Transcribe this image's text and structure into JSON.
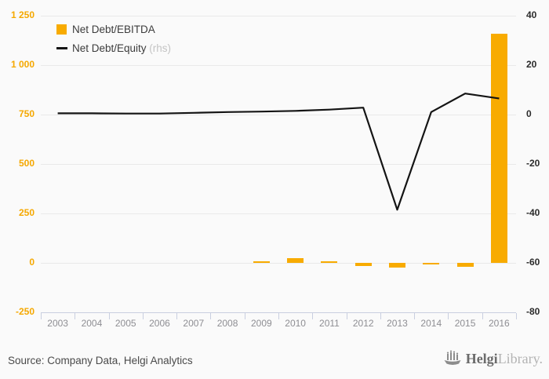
{
  "window": {
    "background": "#fafafa"
  },
  "colors": {
    "bar": "#f8ab00",
    "line": "#141414",
    "left_axis_label": "#f5a800",
    "right_axis_label": "#2b2b2b",
    "year_label": "#8e8e93",
    "gridline": "#e9e9e9",
    "axis_tick": "#c9cfe0",
    "rhs_suffix": "#c4c4c4"
  },
  "legend": {
    "items": [
      {
        "label": "Net Debt/EBITDA",
        "marker": "square",
        "color": "#f8ab00"
      },
      {
        "label": "Net Debt/Equity",
        "suffix": " (rhs)",
        "marker": "line",
        "color": "#141414"
      }
    ]
  },
  "footer": {
    "source": "Source: Company Data, Helgi Analytics",
    "logo": {
      "bold": "Helgi",
      "light": "Library."
    }
  },
  "chart_data": {
    "type": "bar",
    "title": "",
    "categories": [
      "2003",
      "2004",
      "2005",
      "2006",
      "2007",
      "2008",
      "2009",
      "2010",
      "2011",
      "2012",
      "2013",
      "2014",
      "2015",
      "2016"
    ],
    "series": [
      {
        "name": "Net Debt/EBITDA",
        "type": "bar",
        "axis": "left",
        "color": "#f8ab00",
        "values": [
          null,
          null,
          null,
          null,
          null,
          null,
          5,
          25,
          5,
          -15,
          -25,
          -5,
          -20,
          1160
        ]
      },
      {
        "name": "Net Debt/Equity (rhs)",
        "type": "line",
        "axis": "right",
        "color": "#141414",
        "values": [
          0.5,
          0.5,
          0.4,
          0.4,
          0.7,
          1.0,
          1.2,
          1.5,
          2.0,
          2.8,
          -38.5,
          1.0,
          8.5,
          6.5
        ]
      }
    ],
    "left_axis": {
      "min": -250,
      "max": 1250,
      "tick_values": [
        1250,
        1000,
        750,
        500,
        250,
        0,
        -250
      ],
      "tick_labels": [
        "1 250",
        "1 000",
        "750",
        "500",
        "250",
        "0",
        "-250"
      ]
    },
    "right_axis": {
      "min": -80,
      "max": 40,
      "tick_values": [
        40,
        20,
        0,
        -20,
        -40,
        -60,
        -80
      ],
      "tick_labels": [
        "40",
        "20",
        "0",
        "-20",
        "-40",
        "-60",
        "-80"
      ]
    },
    "grid": true,
    "legend_position": "top-left"
  }
}
